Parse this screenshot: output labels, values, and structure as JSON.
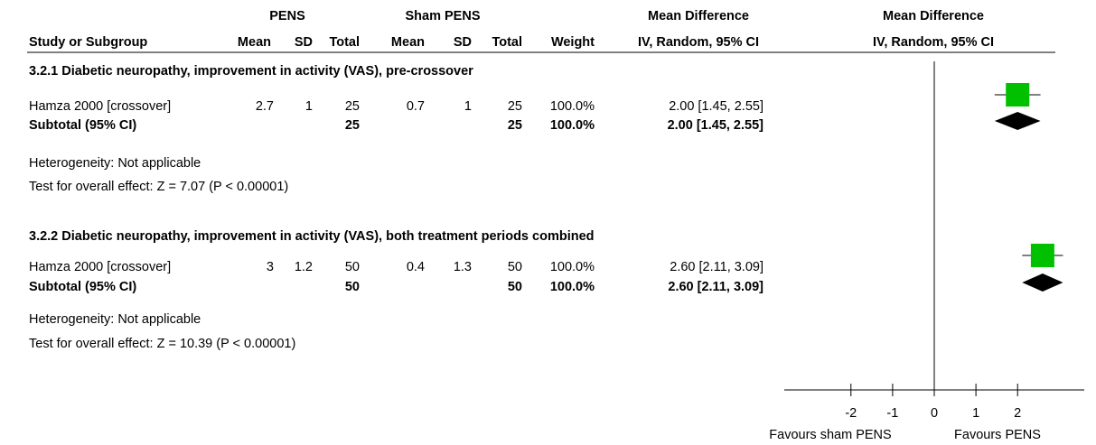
{
  "chart_data": {
    "type": "forest",
    "header": {
      "group1": "PENS",
      "group2": "Sham PENS",
      "effect": "Mean Difference",
      "plot": "Mean Difference"
    },
    "columns": [
      "Study or Subgroup",
      "Mean",
      "SD",
      "Total",
      "Mean",
      "SD",
      "Total",
      "Weight",
      "IV, Random, 95% CI",
      "IV, Random, 95% CI"
    ],
    "subgroups": [
      {
        "title": "3.2.1 Diabetic neuropathy, improvement in activity (VAS), pre-crossover",
        "studies": [
          {
            "name": "Hamza 2000 [crossover]",
            "mean1": 2.7,
            "sd1": 1,
            "n1": 25,
            "mean2": 0.7,
            "sd2": 1,
            "n2": 25,
            "weight": "100.0%",
            "md": 2,
            "ci": [
              1.45,
              2.55
            ],
            "effect_label": "2.00 [1.45, 2.55]"
          }
        ],
        "subtotal": {
          "name": "Subtotal (95% CI)",
          "n1": 25,
          "n2": 25,
          "weight": "100.0%",
          "md": 2,
          "ci": [
            1.45,
            2.55
          ],
          "effect_label": "2.00 [1.45, 2.55]"
        },
        "heterogeneity": "Heterogeneity: Not applicable",
        "overall_test": "Test for overall effect: Z = 7.07 (P < 0.00001)"
      },
      {
        "title": "3.2.2 Diabetic neuropathy, improvement in activity (VAS), both treatment periods combined",
        "studies": [
          {
            "name": "Hamza 2000 [crossover]",
            "mean1": 3,
            "sd1": 1.2,
            "n1": 50,
            "mean2": 0.4,
            "sd2": 1.3,
            "n2": 50,
            "weight": "100.0%",
            "md": 2.6,
            "ci": [
              2.11,
              3.09
            ],
            "effect_label": "2.60 [2.11, 3.09]"
          }
        ],
        "subtotal": {
          "name": "Subtotal (95% CI)",
          "n1": 50,
          "n2": 50,
          "weight": "100.0%",
          "md": 2.6,
          "ci": [
            2.11,
            3.09
          ],
          "effect_label": "2.60 [2.11, 3.09]"
        },
        "heterogeneity": "Heterogeneity: Not applicable",
        "overall_test": "Test for overall effect: Z = 10.39 (P < 0.00001)"
      }
    ],
    "xlim": [
      -3.6,
      3.6
    ],
    "xticks": [
      -2,
      -1,
      0,
      1,
      2
    ],
    "favours_left": "Favours sham PENS",
    "favours_right": "Favours PENS",
    "square_color": "#00c000",
    "diamond_color": "#000000"
  }
}
